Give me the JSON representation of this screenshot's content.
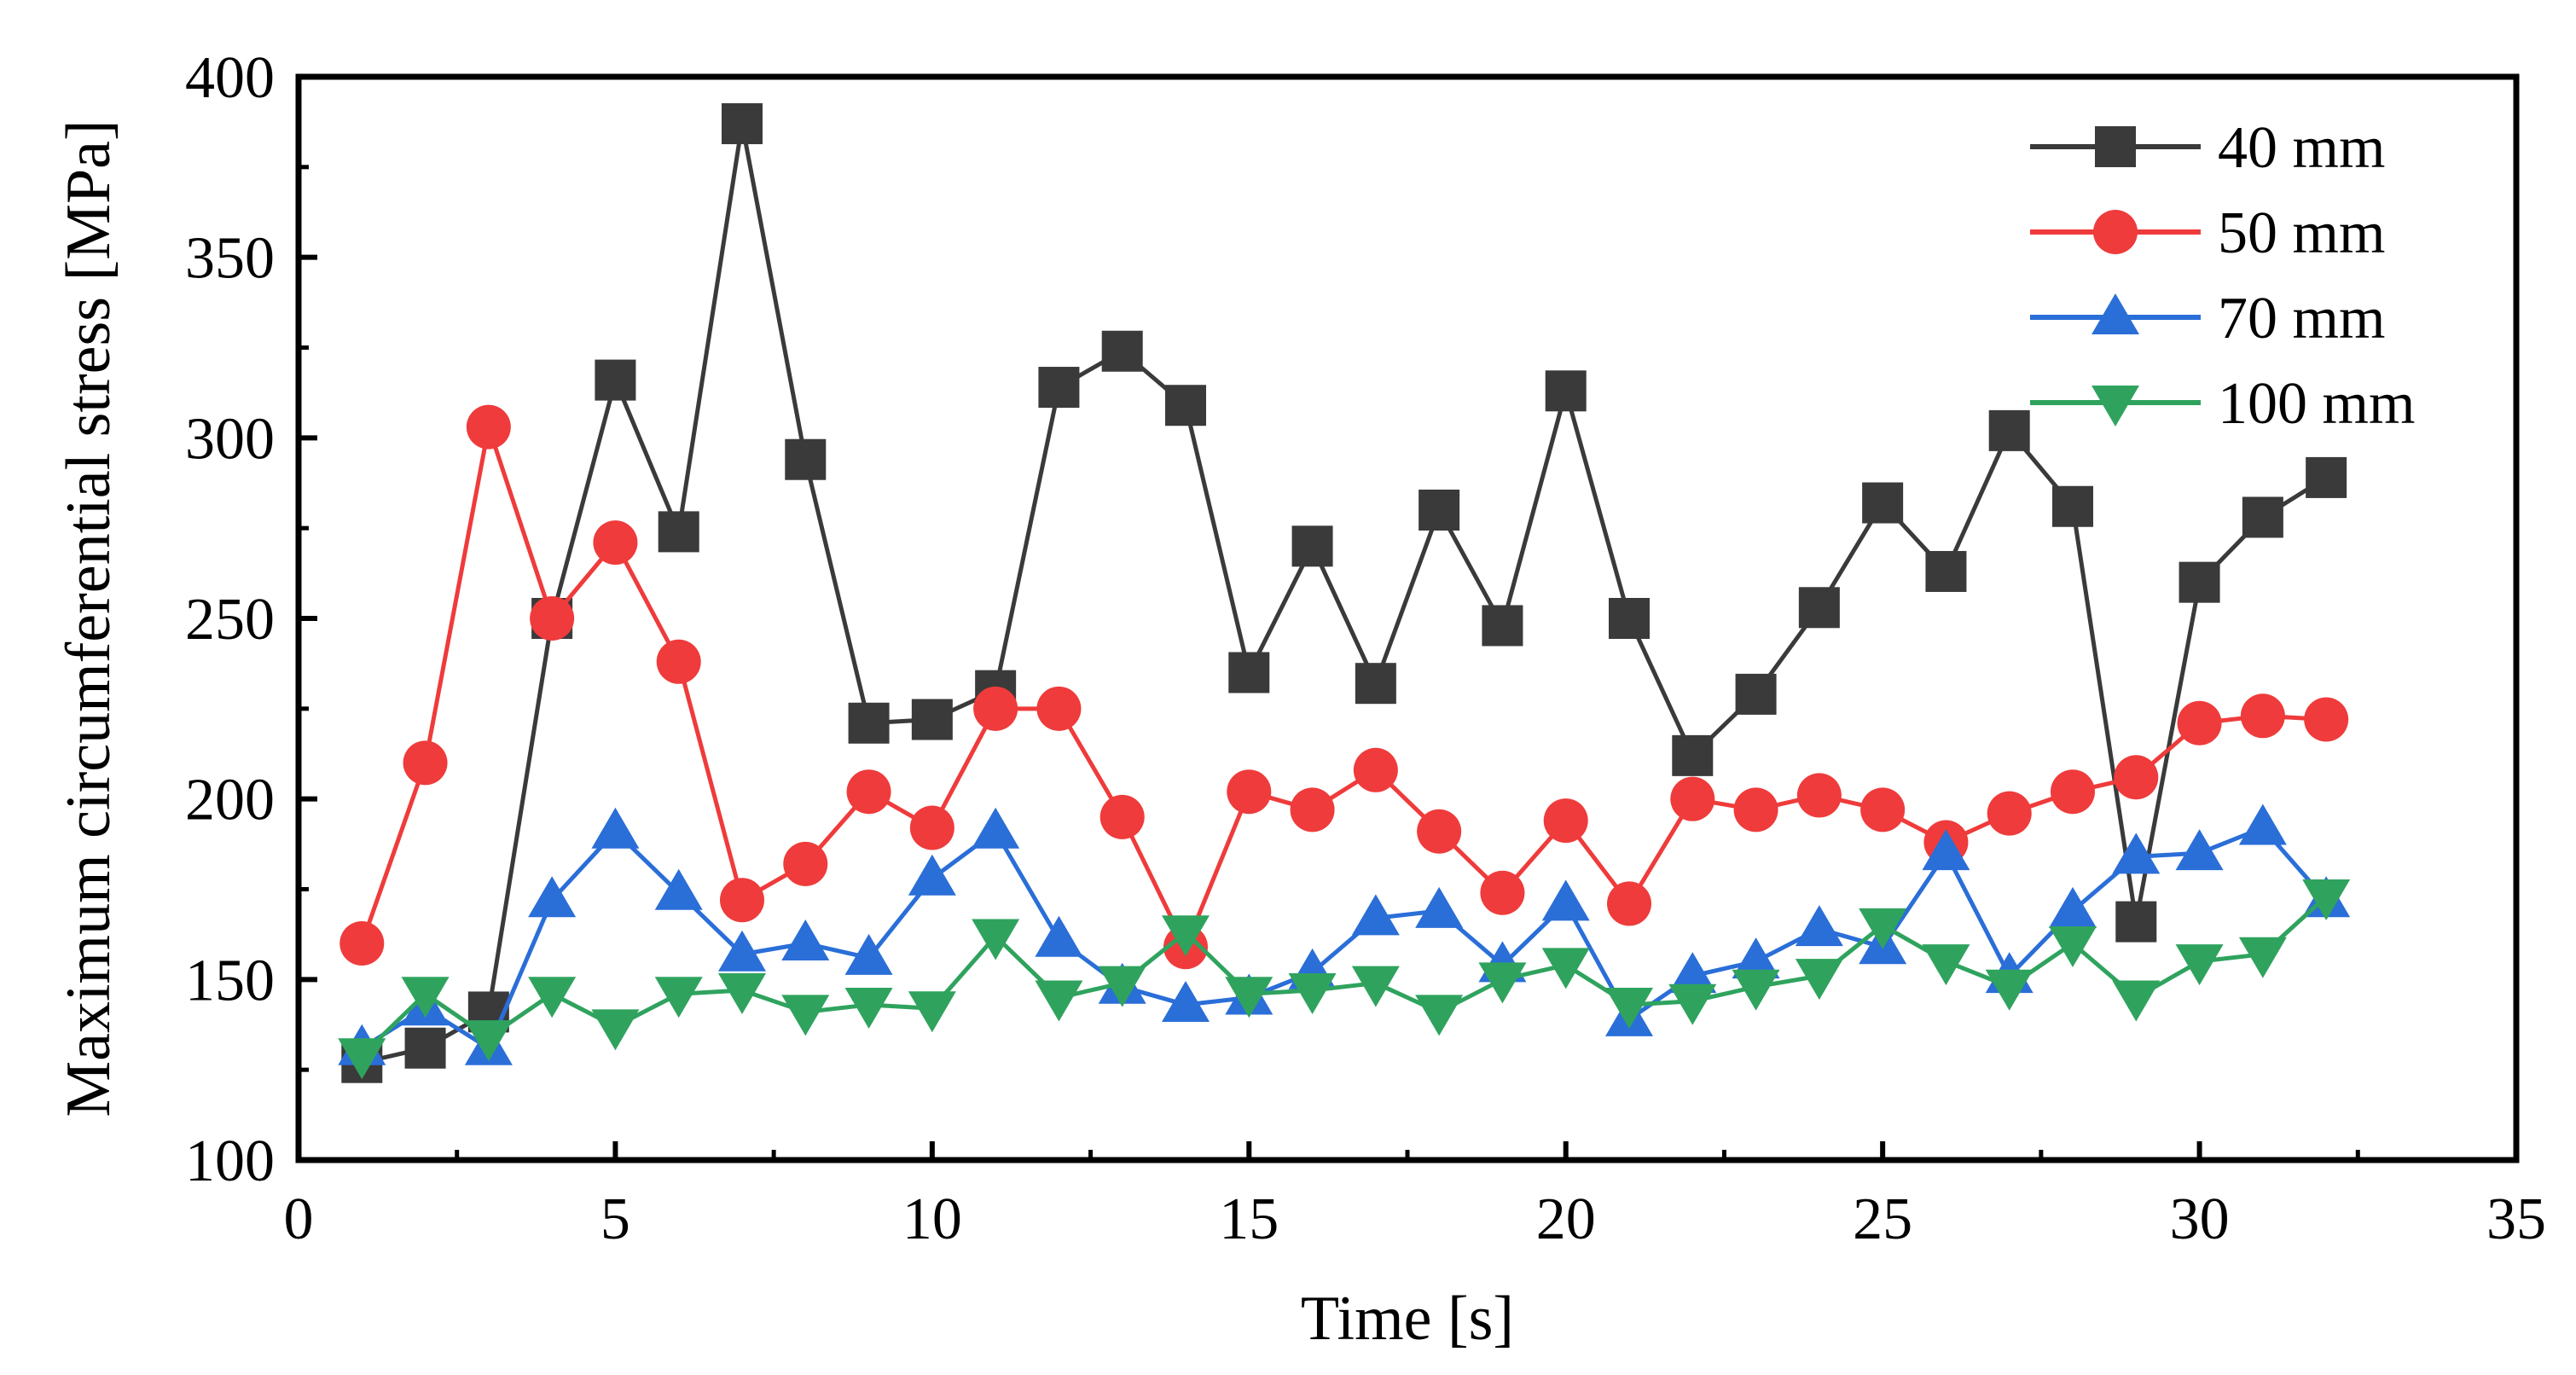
{
  "chart_data": {
    "type": "line",
    "title": "",
    "xlabel": "Time [s]",
    "ylabel": "Maximum circumferential stress [MPa]",
    "xlim": [
      0,
      35
    ],
    "ylim": [
      100,
      400
    ],
    "xticks": [
      0,
      5,
      10,
      15,
      20,
      25,
      30,
      35
    ],
    "yticks": [
      100,
      150,
      200,
      250,
      300,
      350,
      400
    ],
    "legend_position": "top-right",
    "grid": false,
    "x": [
      1,
      2,
      3,
      4,
      5,
      6,
      7,
      8,
      9,
      10,
      11,
      12,
      13,
      14,
      15,
      16,
      17,
      18,
      19,
      20,
      21,
      22,
      23,
      24,
      25,
      26,
      27,
      28,
      29,
      30,
      31,
      32
    ],
    "series": [
      {
        "name": "40 mm",
        "color": "#3a3a3a",
        "marker": "square",
        "values": [
          127,
          131,
          141,
          250,
          316,
          274,
          387,
          294,
          221,
          222,
          230,
          314,
          324,
          309,
          235,
          270,
          232,
          280,
          248,
          313,
          250,
          212,
          229,
          253,
          282,
          263,
          302,
          281,
          166,
          260,
          278,
          289
        ]
      },
      {
        "name": "50 mm",
        "color": "#ef3b3b",
        "marker": "circle",
        "values": [
          160,
          210,
          303,
          250,
          271,
          238,
          172,
          182,
          202,
          192,
          225,
          225,
          195,
          159,
          202,
          197,
          208,
          191,
          174,
          194,
          171,
          200,
          197,
          201,
          197,
          188,
          196,
          202,
          206,
          221,
          223,
          222
        ]
      },
      {
        "name": "70 mm",
        "color": "#2a6ed8",
        "marker": "triangle-up",
        "values": [
          131,
          142,
          131,
          172,
          191,
          174,
          157,
          160,
          156,
          178,
          191,
          161,
          148,
          143,
          145,
          152,
          167,
          169,
          154,
          171,
          139,
          151,
          155,
          164,
          159,
          185,
          151,
          169,
          184,
          185,
          192,
          172
        ]
      },
      {
        "name": "100 mm",
        "color": "#2fa35e",
        "marker": "triangle-down",
        "values": [
          129,
          146,
          134,
          146,
          137,
          146,
          147,
          141,
          143,
          142,
          162,
          145,
          149,
          163,
          146,
          147,
          149,
          141,
          150,
          154,
          143,
          144,
          148,
          151,
          165,
          155,
          148,
          160,
          145,
          155,
          157,
          173
        ]
      }
    ]
  }
}
